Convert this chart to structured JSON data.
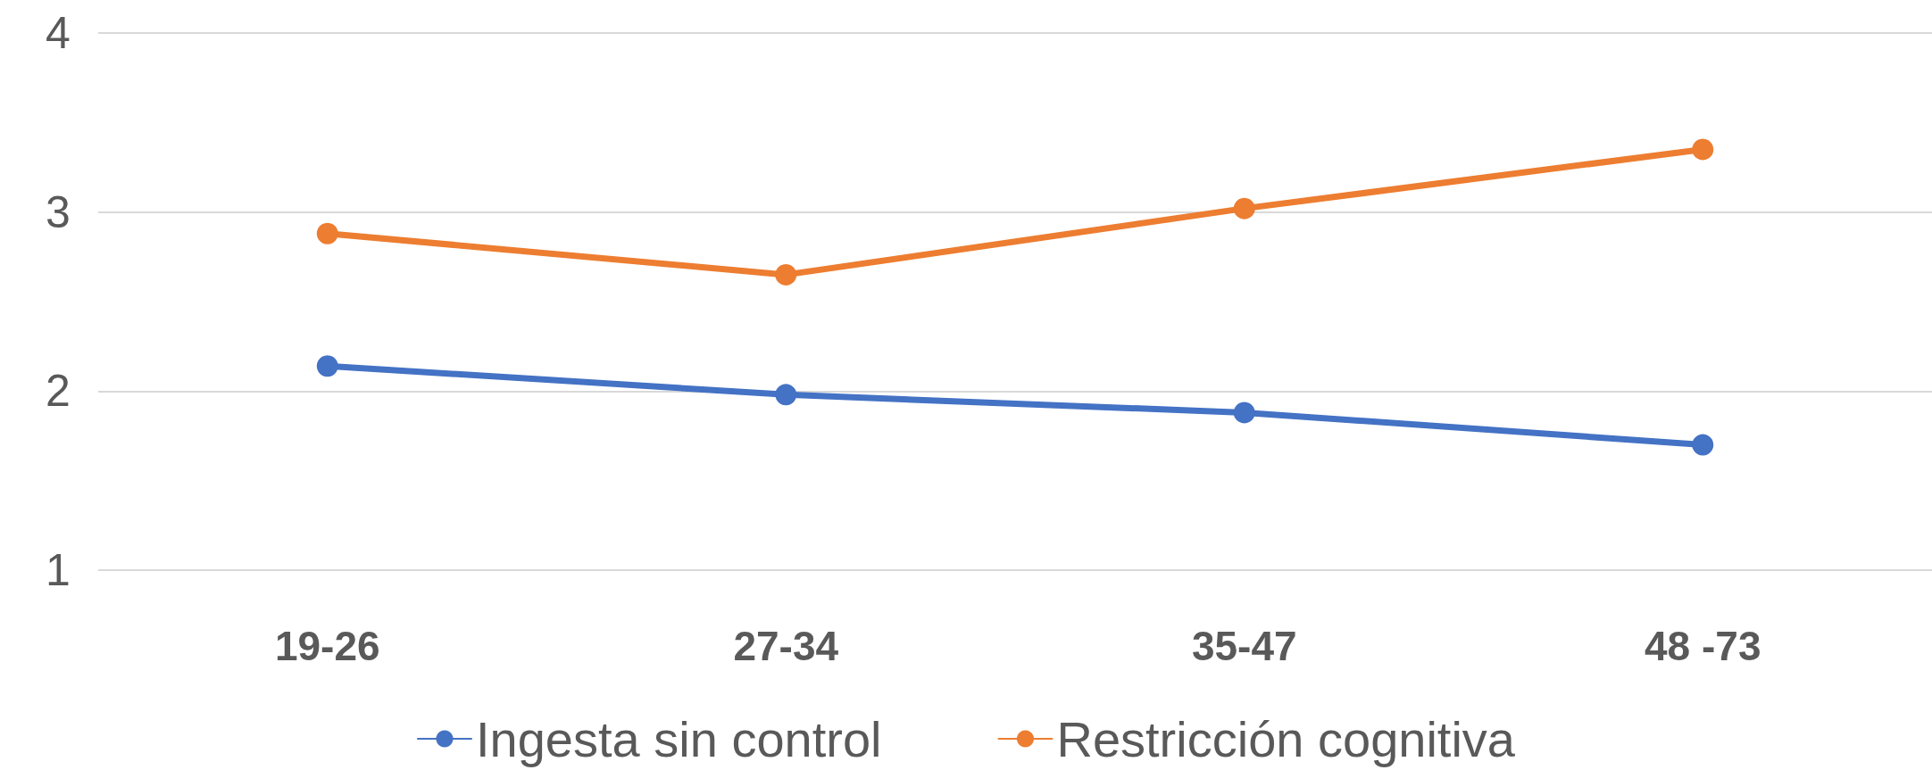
{
  "chart_data": {
    "type": "line",
    "categories": [
      "19-26",
      "27-34",
      "35-47",
      "48 -73"
    ],
    "series": [
      {
        "name": "Ingesta sin control",
        "color": "#4472c4",
        "values": [
          2.14,
          1.98,
          1.88,
          1.7
        ]
      },
      {
        "name": "Restricción cognitiva",
        "color": "#ed7d31",
        "values": [
          2.88,
          2.65,
          3.02,
          3.35
        ]
      }
    ],
    "ylim": [
      1,
      4
    ],
    "yticks": [
      1,
      2,
      3,
      4
    ],
    "grid": "y",
    "legend": "bottom",
    "marker": "circle",
    "line_style": "solid"
  }
}
